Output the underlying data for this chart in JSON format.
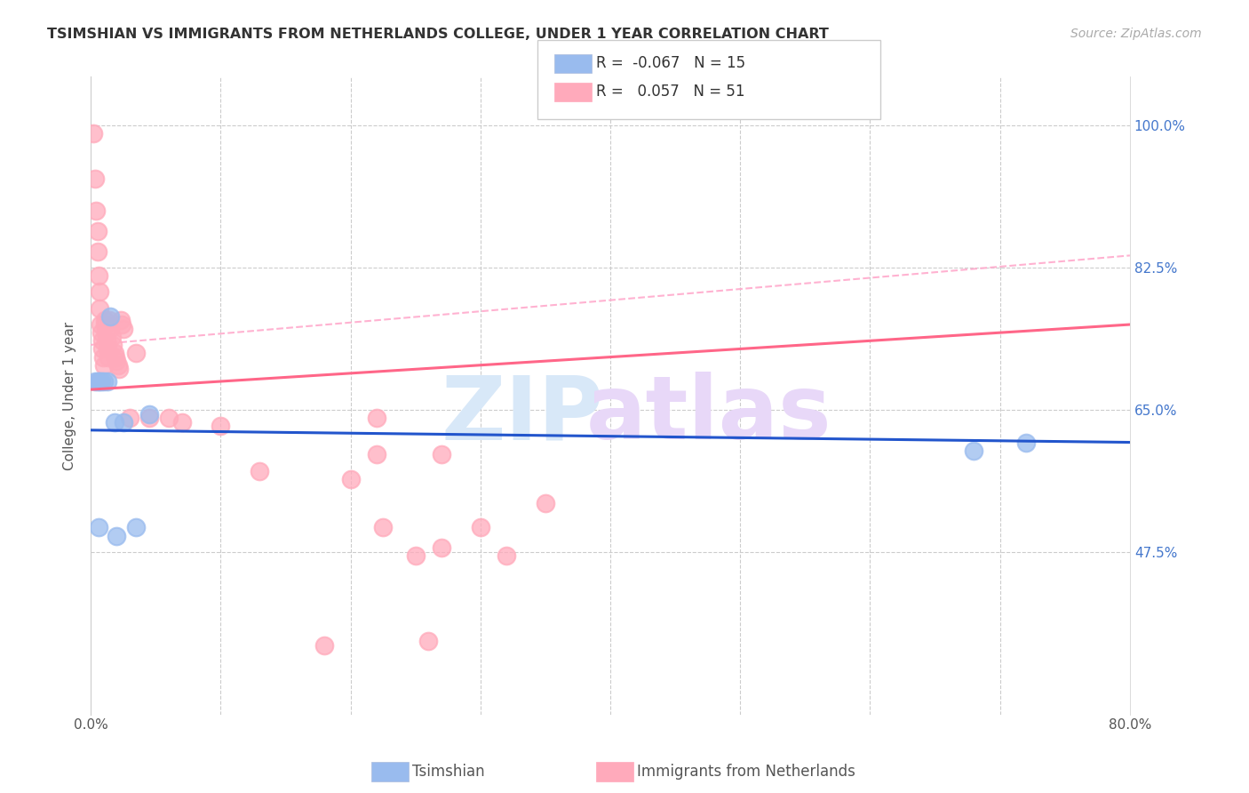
{
  "title": "TSIMSHIAN VS IMMIGRANTS FROM NETHERLANDS COLLEGE, UNDER 1 YEAR CORRELATION CHART",
  "source": "Source: ZipAtlas.com",
  "ylabel": "College, Under 1 year",
  "xlim": [
    0.0,
    80.0
  ],
  "ylim": [
    0.275,
    1.06
  ],
  "legend_r_blue": "-0.067",
  "legend_n_blue": "15",
  "legend_r_pink": "0.057",
  "legend_n_pink": "51",
  "blue_scatter_color": "#99BBEE",
  "pink_scatter_color": "#FFAABB",
  "blue_line_color": "#2255CC",
  "pink_line_color": "#FF6688",
  "dash_line_color": "#FFAACC",
  "watermark_zip_color": "#D8E8F8",
  "watermark_atlas_color": "#E8D8F8",
  "blue_trend": [
    0.625,
    0.61
  ],
  "pink_trend": [
    0.675,
    0.755
  ],
  "dash_trend": [
    0.73,
    0.84
  ],
  "blue_x": [
    0.3,
    0.5,
    0.7,
    0.8,
    1.0,
    1.3,
    1.5,
    1.8,
    2.5,
    3.5,
    4.5,
    68.0,
    72.0,
    0.6,
    2.0
  ],
  "blue_y": [
    0.685,
    0.685,
    0.685,
    0.685,
    0.685,
    0.685,
    0.765,
    0.635,
    0.635,
    0.505,
    0.645,
    0.6,
    0.61,
    0.505,
    0.495
  ],
  "pink_x": [
    0.2,
    0.3,
    0.4,
    0.5,
    0.55,
    0.6,
    0.65,
    0.7,
    0.75,
    0.8,
    0.85,
    0.9,
    0.95,
    1.0,
    1.05,
    1.1,
    1.15,
    1.2,
    1.3,
    1.35,
    1.4,
    1.5,
    1.6,
    1.7,
    1.8,
    1.9,
    2.0,
    2.1,
    2.2,
    2.3,
    2.4,
    2.5,
    3.0,
    3.5,
    4.5,
    6.0,
    7.0,
    10.0,
    13.0,
    18.0,
    20.0,
    22.0,
    25.0,
    27.0,
    30.0,
    35.0,
    32.0,
    22.0,
    27.0,
    22.5,
    26.0
  ],
  "pink_y": [
    0.99,
    0.935,
    0.895,
    0.87,
    0.845,
    0.815,
    0.795,
    0.775,
    0.755,
    0.745,
    0.735,
    0.725,
    0.715,
    0.705,
    0.76,
    0.755,
    0.745,
    0.735,
    0.725,
    0.715,
    0.76,
    0.75,
    0.74,
    0.73,
    0.72,
    0.715,
    0.71,
    0.705,
    0.7,
    0.76,
    0.755,
    0.75,
    0.64,
    0.72,
    0.64,
    0.64,
    0.635,
    0.63,
    0.575,
    0.36,
    0.565,
    0.64,
    0.47,
    0.595,
    0.505,
    0.535,
    0.47,
    0.595,
    0.48,
    0.505,
    0.365
  ]
}
